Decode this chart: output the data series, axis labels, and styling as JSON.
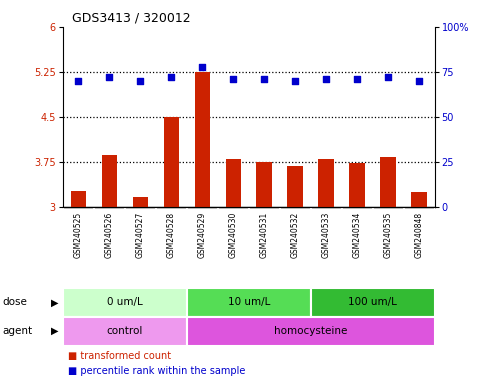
{
  "title": "GDS3413 / 320012",
  "samples": [
    "GSM240525",
    "GSM240526",
    "GSM240527",
    "GSM240528",
    "GSM240529",
    "GSM240530",
    "GSM240531",
    "GSM240532",
    "GSM240533",
    "GSM240534",
    "GSM240535",
    "GSM240848"
  ],
  "bar_values": [
    3.28,
    3.87,
    3.18,
    4.5,
    5.25,
    3.8,
    3.75,
    3.68,
    3.8,
    3.73,
    3.83,
    3.25
  ],
  "dot_values": [
    70,
    72,
    70,
    72,
    78,
    71,
    71,
    70,
    71,
    71,
    72,
    70
  ],
  "bar_color": "#cc2200",
  "dot_color": "#0000cc",
  "ylim_left": [
    3.0,
    6.0
  ],
  "ylim_right": [
    0,
    100
  ],
  "yticks_left": [
    3.0,
    3.75,
    4.5,
    5.25,
    6.0
  ],
  "ytick_labels_left": [
    "3",
    "3.75",
    "4.5",
    "5.25",
    "6"
  ],
  "yticks_right": [
    0,
    25,
    50,
    75,
    100
  ],
  "ytick_labels_right": [
    "0",
    "25",
    "50",
    "75",
    "100%"
  ],
  "hlines": [
    3.75,
    4.5,
    5.25
  ],
  "dose_groups": [
    {
      "label": "0 um/L",
      "start": 0,
      "end": 4,
      "color": "#ccffcc"
    },
    {
      "label": "10 um/L",
      "start": 4,
      "end": 8,
      "color": "#55dd55"
    },
    {
      "label": "100 um/L",
      "start": 8,
      "end": 12,
      "color": "#33bb33"
    }
  ],
  "agent_groups": [
    {
      "label": "control",
      "start": 0,
      "end": 4,
      "color": "#ee99ee"
    },
    {
      "label": "homocysteine",
      "start": 4,
      "end": 12,
      "color": "#dd55dd"
    }
  ],
  "dose_label": "dose",
  "agent_label": "agent",
  "legend_bar": "transformed count",
  "legend_dot": "percentile rank within the sample",
  "xtick_bg": "#cccccc",
  "plot_bg": "#ffffff"
}
